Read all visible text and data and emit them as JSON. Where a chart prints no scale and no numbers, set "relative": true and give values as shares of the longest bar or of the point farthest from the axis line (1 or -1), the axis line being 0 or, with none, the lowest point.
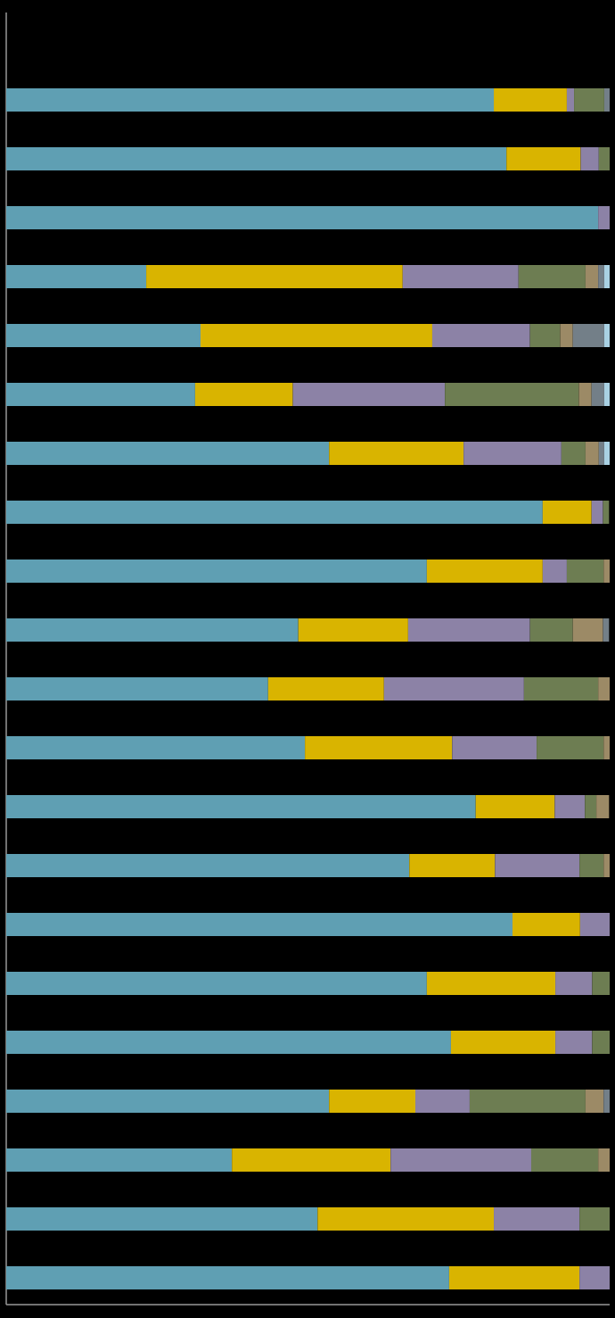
{
  "chart_data": {
    "type": "bar",
    "orientation": "horizontal",
    "stacked": true,
    "relative": true,
    "categories": [
      null,
      null,
      null,
      null,
      null,
      null,
      null,
      null,
      null,
      null,
      null,
      null,
      null,
      null,
      null,
      null,
      null,
      null,
      null,
      null,
      null
    ],
    "series": [
      {
        "color": "#5f9fb3",
        "values": [
          0.808,
          0.829,
          0.981,
          0.232,
          0.322,
          0.313,
          0.535,
          0.889,
          0.697,
          0.484,
          0.434,
          0.495,
          0.778,
          0.668,
          0.839,
          0.697,
          0.737,
          0.535,
          0.374,
          0.516,
          0.734
        ]
      },
      {
        "color": "#d9b400",
        "values": [
          0.121,
          0.123,
          null,
          0.425,
          0.384,
          0.162,
          0.223,
          0.081,
          0.192,
          0.182,
          0.192,
          0.244,
          0.131,
          0.142,
          0.112,
          0.213,
          0.173,
          0.143,
          0.263,
          0.292,
          0.216
        ]
      },
      {
        "color": "#8c82a6",
        "values": [
          0.012,
          0.03,
          0.019,
          0.192,
          0.162,
          0.252,
          0.162,
          0.019,
          0.04,
          0.202,
          0.232,
          0.14,
          0.05,
          0.14,
          0.049,
          0.061,
          0.061,
          0.09,
          0.233,
          0.142,
          0.05
        ]
      },
      {
        "color": "#6d7d52",
        "values": [
          0.05,
          0.018,
          null,
          0.111,
          0.05,
          0.222,
          0.04,
          0.01,
          0.061,
          0.071,
          0.123,
          0.111,
          0.019,
          0.04,
          null,
          0.029,
          0.029,
          0.192,
          0.111,
          0.05,
          null
        ]
      },
      {
        "color": "#9c8a66",
        "values": [
          null,
          null,
          null,
          0.021,
          0.021,
          0.021,
          0.022,
          null,
          0.01,
          0.05,
          0.019,
          0.01,
          0.021,
          0.01,
          null,
          null,
          null,
          0.03,
          0.019,
          null,
          null
        ]
      },
      {
        "color": "#737f88",
        "values": [
          0.009,
          null,
          null,
          0.01,
          0.052,
          0.021,
          0.009,
          null,
          null,
          0.01,
          null,
          null,
          null,
          null,
          null,
          null,
          null,
          0.01,
          null,
          null,
          null
        ]
      },
      {
        "color": "#a9d1e3",
        "values": [
          null,
          null,
          null,
          0.009,
          0.009,
          0.009,
          0.009,
          null,
          null,
          null,
          null,
          null,
          null,
          null,
          null,
          null,
          null,
          null,
          null,
          null,
          null
        ]
      }
    ]
  }
}
